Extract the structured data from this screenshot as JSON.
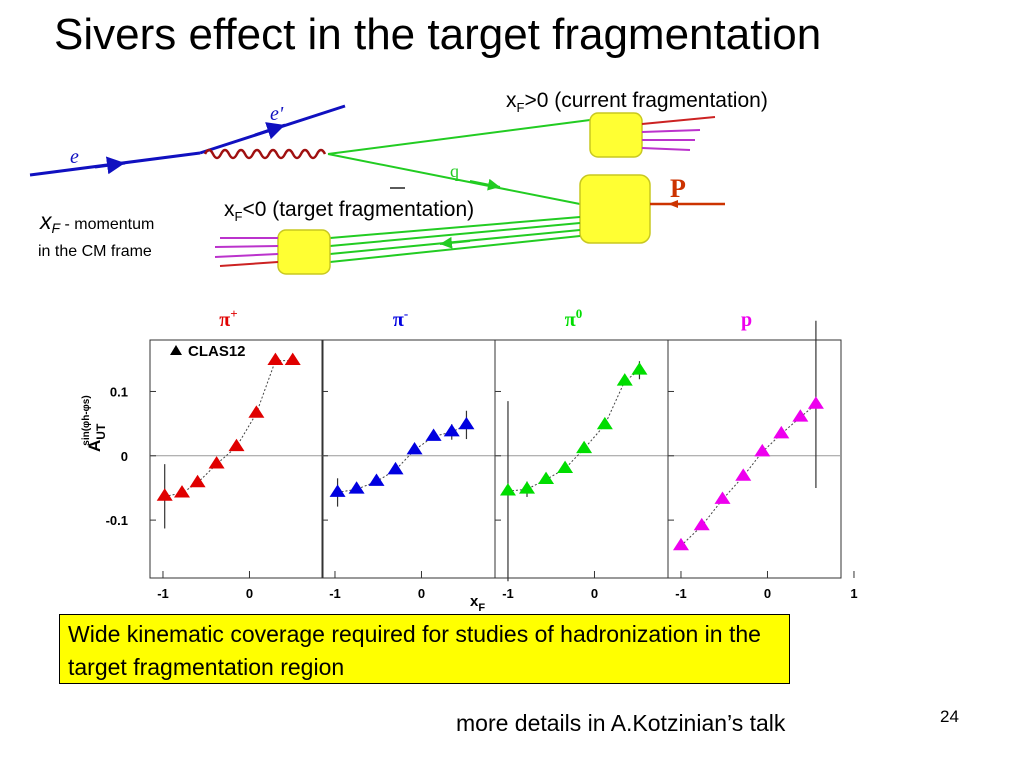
{
  "title": "Sivers effect in the target fragmentation",
  "diagram": {
    "current_label": {
      "pre": "x",
      "sub": "F",
      "post": ">0 (current fragmentation)"
    },
    "target_label": {
      "pre": "x",
      "sub": "F",
      "post": "<0 (target fragmentation)"
    },
    "xf_note": {
      "pre": "x",
      "sub": "F",
      "post": " - momentum",
      "line2": "in the CM frame"
    },
    "particles": {
      "e": "e",
      "e_prime": "e'",
      "q": "q",
      "p": "P"
    },
    "colors": {
      "electron": "#1010c0",
      "photon": "#a01010",
      "quark": "#22cc22",
      "blob": "#ffff33",
      "proton": "#cc3300"
    }
  },
  "chart_data": {
    "type": "scatter",
    "xlabel": "x",
    "xlabel_sub": "F",
    "ylabel": "A",
    "ylabel_sub": "UT",
    "ylabel_sup": "sin(φh-φs)",
    "ylim": [
      -0.19,
      0.18
    ],
    "yticks": [
      -0.1,
      0,
      0.1
    ],
    "ytick_labels": [
      "-0.1",
      "0",
      "0.1"
    ],
    "legend": "CLAS12",
    "marker": "triangle",
    "grid": false,
    "panels": [
      {
        "name": "π+",
        "title": "π",
        "title_sup": "+",
        "color": "#e00000",
        "xlim": [
          -1.15,
          0.85
        ],
        "xticks": [
          -1,
          0
        ],
        "xtick_labels": [
          "-1",
          "0"
        ],
        "points": [
          {
            "x": -0.98,
            "y": -0.063,
            "err": 0.05
          },
          {
            "x": -0.78,
            "y": -0.058,
            "err": 0
          },
          {
            "x": -0.6,
            "y": -0.042,
            "err": 0
          },
          {
            "x": -0.38,
            "y": -0.013,
            "err": 0
          },
          {
            "x": -0.15,
            "y": 0.014,
            "err": 0
          },
          {
            "x": 0.08,
            "y": 0.066,
            "err": 0
          },
          {
            "x": 0.3,
            "y": 0.148,
            "err": 0
          },
          {
            "x": 0.5,
            "y": 0.148,
            "err": 0
          }
        ]
      },
      {
        "name": "π-",
        "title": "π",
        "title_sup": "-",
        "color": "#0000e0",
        "xlim": [
          -1.15,
          0.85
        ],
        "xticks": [
          -1,
          0
        ],
        "xtick_labels": [
          "-1",
          "0"
        ],
        "points": [
          {
            "x": -0.97,
            "y": -0.057,
            "err": 0.022
          },
          {
            "x": -0.75,
            "y": -0.052,
            "err": 0
          },
          {
            "x": -0.52,
            "y": -0.04,
            "err": 0
          },
          {
            "x": -0.3,
            "y": -0.022,
            "err": 0
          },
          {
            "x": -0.08,
            "y": 0.009,
            "err": 0
          },
          {
            "x": 0.14,
            "y": 0.03,
            "err": 0
          },
          {
            "x": 0.35,
            "y": 0.037,
            "err": 0.012
          },
          {
            "x": 0.52,
            "y": 0.048,
            "err": 0.022
          }
        ]
      },
      {
        "name": "π0",
        "title": "π",
        "title_sup": "0",
        "color": "#00dd00",
        "xlim": [
          -1.15,
          0.85
        ],
        "xticks": [
          -1,
          0
        ],
        "xtick_labels": [
          "-1",
          "0"
        ],
        "points": [
          {
            "x": -1.0,
            "y": -0.055,
            "err": 0.14
          },
          {
            "x": -0.78,
            "y": -0.052,
            "err": 0.012
          },
          {
            "x": -0.56,
            "y": -0.037,
            "err": 0
          },
          {
            "x": -0.34,
            "y": -0.02,
            "err": 0
          },
          {
            "x": -0.12,
            "y": 0.011,
            "err": 0
          },
          {
            "x": 0.12,
            "y": 0.048,
            "err": 0
          },
          {
            "x": 0.35,
            "y": 0.116,
            "err": 0
          },
          {
            "x": 0.52,
            "y": 0.133,
            "err": 0.014
          }
        ]
      },
      {
        "name": "p",
        "title": "p",
        "title_sup": "",
        "color": "#ee00ee",
        "xlim": [
          -1.15,
          0.85
        ],
        "xticks": [
          -1,
          0,
          1
        ],
        "xtick_labels": [
          "-1",
          "0",
          "1"
        ],
        "points": [
          {
            "x": -1.0,
            "y": -0.14,
            "err": 0
          },
          {
            "x": -0.76,
            "y": -0.109,
            "err": 0
          },
          {
            "x": -0.52,
            "y": -0.068,
            "err": 0
          },
          {
            "x": -0.28,
            "y": -0.032,
            "err": 0
          },
          {
            "x": -0.06,
            "y": 0.006,
            "err": 0
          },
          {
            "x": 0.16,
            "y": 0.034,
            "err": 0
          },
          {
            "x": 0.38,
            "y": 0.06,
            "err": 0
          },
          {
            "x": 0.56,
            "y": 0.08,
            "err": 0.13
          }
        ]
      }
    ]
  },
  "note": "Wide kinematic coverage required for studies of hadronization in the target fragmentation region",
  "credit": "more details in A.Kotzinian’s talk",
  "page_number": "24"
}
